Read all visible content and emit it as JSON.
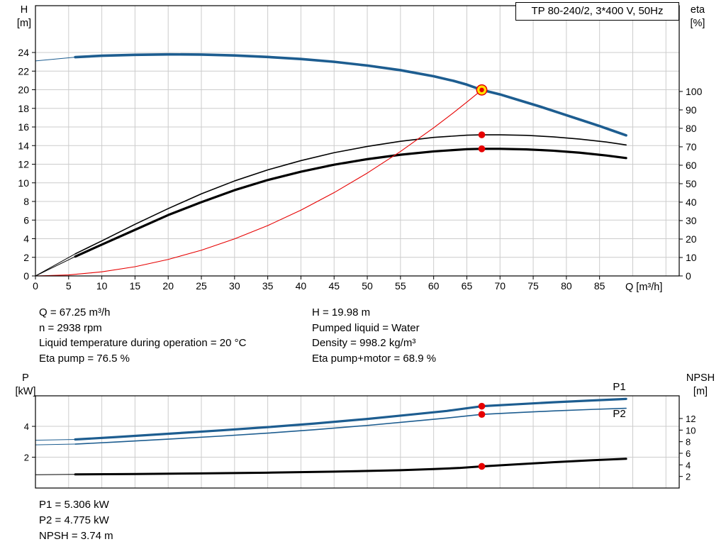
{
  "colors": {
    "curve_blue": "#1d5d90",
    "label_blue": "#2e74b5",
    "red": "#e60000",
    "black": "#000000",
    "grid": "#cccccc",
    "marker_yellow": "#ffe200"
  },
  "info_top": {
    "left": [
      "Q = 67.25 m³/h",
      "n = 2938 rpm",
      "Liquid temperature during operation = 20 °C",
      "Eta pump = 76.5 %"
    ],
    "right": [
      "H = 19.98 m",
      "Pumped liquid = Water",
      "Density = 998.2 kg/m³",
      "Eta pump+motor = 68.9 %"
    ]
  },
  "info_bottom": [
    "P1 = 5.306 kW",
    "P2 = 4.775 kW",
    "NPSH = 3.74 m"
  ],
  "chart_data": [
    {
      "type": "line",
      "title": "TP 80-240/2, 3*400 V, 50Hz",
      "xlabel": "Q [m³/h]",
      "axis_labels": {
        "left": [
          "H",
          "[m]"
        ],
        "right": [
          "eta",
          "[%]"
        ]
      },
      "x_range": [
        0,
        97
      ],
      "y_left_range": [
        0,
        29.03
      ],
      "y_right_range": [
        0,
        146.5
      ],
      "x_ticks": [
        0,
        5,
        10,
        15,
        20,
        25,
        30,
        35,
        40,
        45,
        50,
        55,
        60,
        65,
        70,
        75,
        80,
        85
      ],
      "x_grid": [
        5,
        10,
        15,
        20,
        25,
        30,
        35,
        40,
        45,
        50,
        55,
        60,
        65,
        70,
        75,
        80,
        85,
        90,
        95
      ],
      "y_grid": [
        2,
        4,
        6,
        8,
        10,
        12,
        14,
        16,
        18,
        20,
        22,
        24
      ],
      "y_left_ticks": [
        0,
        2,
        4,
        6,
        8,
        10,
        12,
        14,
        16,
        18,
        20,
        22,
        24
      ],
      "y_right_ticks": [
        0,
        10,
        20,
        30,
        40,
        50,
        60,
        70,
        80,
        90,
        100
      ],
      "series": [
        {
          "name": "head-curve",
          "axis": "left",
          "color": "blue",
          "width": 3.6,
          "lead": [
            [
              0,
              23.1
            ],
            [
              6,
              23.5
            ]
          ],
          "points": [
            [
              6,
              23.5
            ],
            [
              10,
              23.65
            ],
            [
              15,
              23.75
            ],
            [
              20,
              23.8
            ],
            [
              25,
              23.78
            ],
            [
              30,
              23.68
            ],
            [
              35,
              23.52
            ],
            [
              40,
              23.3
            ],
            [
              45,
              23.0
            ],
            [
              50,
              22.6
            ],
            [
              55,
              22.1
            ],
            [
              60,
              21.45
            ],
            [
              63,
              20.95
            ],
            [
              65,
              20.55
            ],
            [
              67.25,
              19.98
            ],
            [
              70,
              19.5
            ],
            [
              73,
              18.85
            ],
            [
              76,
              18.2
            ],
            [
              79,
              17.5
            ],
            [
              82,
              16.8
            ],
            [
              85,
              16.1
            ],
            [
              87,
              15.6
            ],
            [
              89,
              15.1
            ]
          ]
        },
        {
          "name": "eta-pump-curve",
          "axis": "right",
          "color": "black",
          "width": 1.6,
          "lead": [
            [
              0,
              0
            ],
            [
              6,
              12
            ]
          ],
          "points": [
            [
              6,
              12
            ],
            [
              10,
              19
            ],
            [
              15,
              28
            ],
            [
              20,
              36.5
            ],
            [
              25,
              44.5
            ],
            [
              30,
              51.5
            ],
            [
              35,
              57.5
            ],
            [
              40,
              62.5
            ],
            [
              45,
              66.8
            ],
            [
              50,
              70.2
            ],
            [
              55,
              73
            ],
            [
              60,
              75.1
            ],
            [
              65,
              76.3
            ],
            [
              67.25,
              76.5
            ],
            [
              70,
              76.5
            ],
            [
              74,
              76.2
            ],
            [
              78,
              75.4
            ],
            [
              82,
              74.2
            ],
            [
              86,
              72.6
            ],
            [
              89,
              71
            ]
          ]
        },
        {
          "name": "eta-pump-motor-curve",
          "axis": "right",
          "color": "black",
          "width": 3.2,
          "lead": [
            [
              0,
              0
            ],
            [
              6,
              10.5
            ]
          ],
          "points": [
            [
              6,
              10.5
            ],
            [
              10,
              17
            ],
            [
              15,
              25
            ],
            [
              20,
              33
            ],
            [
              25,
              40
            ],
            [
              30,
              46.5
            ],
            [
              35,
              52
            ],
            [
              40,
              56.5
            ],
            [
              45,
              60.3
            ],
            [
              50,
              63.3
            ],
            [
              55,
              65.7
            ],
            [
              60,
              67.5
            ],
            [
              65,
              68.7
            ],
            [
              67.25,
              68.9
            ],
            [
              70,
              68.9
            ],
            [
              74,
              68.6
            ],
            [
              78,
              67.9
            ],
            [
              82,
              66.8
            ],
            [
              86,
              65.3
            ],
            [
              89,
              63.9
            ]
          ]
        },
        {
          "name": "system-curve",
          "axis": "left",
          "color": "red",
          "width": 1.1,
          "points": [
            [
              0,
              0
            ],
            [
              5,
              0.11
            ],
            [
              10,
              0.44
            ],
            [
              15,
              0.99
            ],
            [
              20,
              1.77
            ],
            [
              25,
              2.76
            ],
            [
              30,
              3.98
            ],
            [
              35,
              5.41
            ],
            [
              40,
              7.07
            ],
            [
              45,
              8.95
            ],
            [
              50,
              11.05
            ],
            [
              55,
              13.37
            ],
            [
              60,
              15.91
            ],
            [
              63,
              17.54
            ],
            [
              65,
              18.67
            ],
            [
              67.25,
              19.98
            ]
          ]
        }
      ],
      "markers": [
        {
          "type": "dot",
          "axis": "right",
          "x": 67.25,
          "y": 76.5
        },
        {
          "type": "dot",
          "axis": "right",
          "x": 67.25,
          "y": 68.9
        },
        {
          "type": "duty",
          "axis": "left",
          "x": 67.25,
          "y": 19.98
        }
      ]
    },
    {
      "type": "line",
      "title": "",
      "xlabel": "",
      "axis_labels": {
        "left": [
          "P",
          "[kW]"
        ],
        "right": [
          "NPSH",
          "[m]"
        ]
      },
      "x_range": [
        0,
        97
      ],
      "y_left_range": [
        0,
        5.98
      ],
      "y_right_range": [
        0,
        15.92
      ],
      "x_ticks": [],
      "x_grid": [
        5,
        10,
        15,
        20,
        25,
        30,
        35,
        40,
        45,
        50,
        55,
        60,
        65,
        70,
        75,
        80,
        85,
        90,
        95
      ],
      "y_grid": [
        2,
        4
      ],
      "y_left_ticks": [
        2,
        4
      ],
      "y_right_ticks": [
        2,
        4,
        6,
        8,
        10,
        12
      ],
      "series": [
        {
          "name": "p1-curve",
          "axis": "left",
          "color": "blue",
          "width": 3.2,
          "lead": [
            [
              0,
              3.1
            ],
            [
              6,
              3.15
            ]
          ],
          "points": [
            [
              6,
              3.15
            ],
            [
              12,
              3.3
            ],
            [
              20,
              3.52
            ],
            [
              28,
              3.74
            ],
            [
              35,
              3.95
            ],
            [
              42,
              4.18
            ],
            [
              50,
              4.48
            ],
            [
              57,
              4.78
            ],
            [
              62,
              5.0
            ],
            [
              67.25,
              5.306
            ],
            [
              72,
              5.42
            ],
            [
              78,
              5.56
            ],
            [
              84,
              5.68
            ],
            [
              89,
              5.78
            ]
          ]
        },
        {
          "name": "p2-curve",
          "axis": "left",
          "color": "blue",
          "width": 1.6,
          "lead": [
            [
              0,
              2.8
            ],
            [
              6,
              2.85
            ]
          ],
          "points": [
            [
              6,
              2.85
            ],
            [
              12,
              2.98
            ],
            [
              20,
              3.17
            ],
            [
              28,
              3.37
            ],
            [
              35,
              3.56
            ],
            [
              42,
              3.78
            ],
            [
              50,
              4.06
            ],
            [
              57,
              4.34
            ],
            [
              62,
              4.54
            ],
            [
              67.25,
              4.775
            ],
            [
              72,
              4.88
            ],
            [
              78,
              5.0
            ],
            [
              84,
              5.1
            ],
            [
              89,
              5.17
            ]
          ]
        },
        {
          "name": "npsh-curve",
          "axis": "right",
          "color": "black",
          "width": 3.0,
          "lead": [
            [
              0,
              2.3
            ],
            [
              6,
              2.35
            ]
          ],
          "points": [
            [
              6,
              2.35
            ],
            [
              15,
              2.42
            ],
            [
              25,
              2.52
            ],
            [
              35,
              2.65
            ],
            [
              45,
              2.83
            ],
            [
              55,
              3.08
            ],
            [
              60,
              3.27
            ],
            [
              64,
              3.47
            ],
            [
              67.25,
              3.74
            ],
            [
              72,
              4.06
            ],
            [
              78,
              4.45
            ],
            [
              84,
              4.8
            ],
            [
              89,
              5.05
            ]
          ]
        }
      ],
      "markers": [
        {
          "type": "dot",
          "axis": "left",
          "x": 67.25,
          "y": 5.306
        },
        {
          "type": "dot",
          "axis": "left",
          "x": 67.25,
          "y": 4.775
        },
        {
          "type": "dot",
          "axis": "right",
          "x": 67.25,
          "y": 3.74
        }
      ],
      "labels": [
        {
          "text": "P1",
          "axis": "left",
          "x": 87,
          "y": 6.35
        },
        {
          "text": "P2",
          "axis": "left",
          "x": 87,
          "y": 4.6
        }
      ]
    }
  ]
}
